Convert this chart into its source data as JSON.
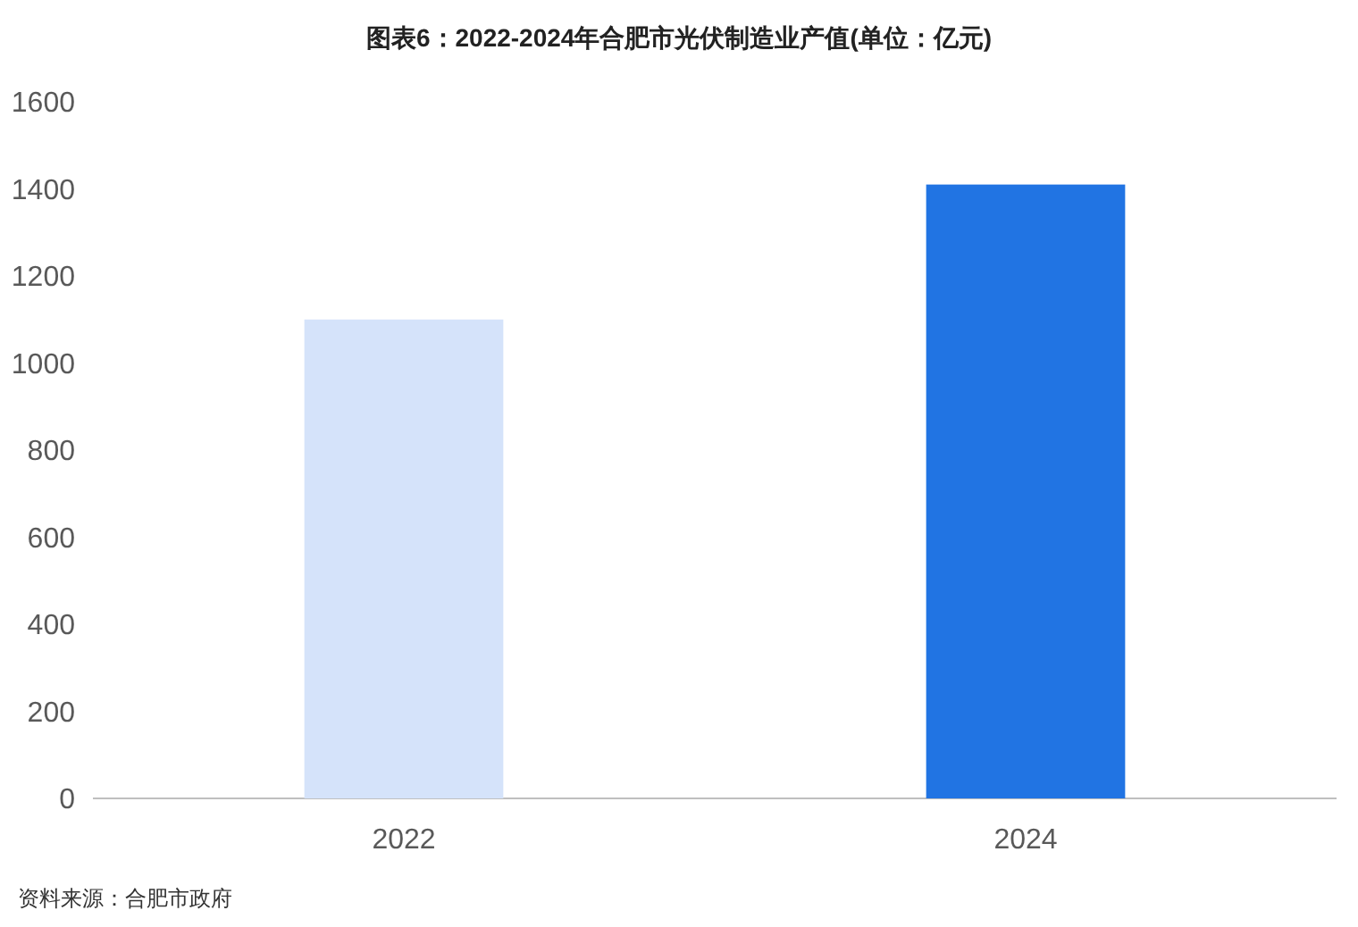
{
  "chart_data": {
    "type": "bar",
    "title": "图表6：2022-2024年合肥市光伏制造业产值(单位：亿元)",
    "categories": [
      "2022",
      "2024"
    ],
    "values": [
      1100,
      1410
    ],
    "colors": [
      "#d5e3fa",
      "#2174e3"
    ],
    "ylim": [
      0,
      1600
    ],
    "yticks": [
      0,
      200,
      400,
      600,
      800,
      1000,
      1200,
      1400,
      1600
    ],
    "annotations": [
      "资料来源：合肥市政府"
    ]
  }
}
